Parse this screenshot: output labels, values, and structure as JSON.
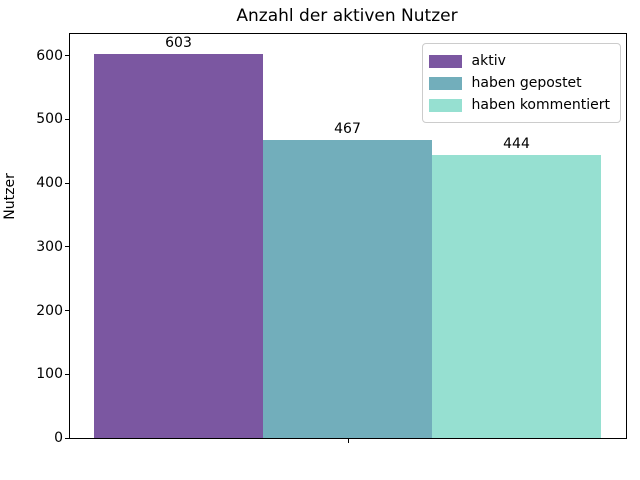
{
  "figure": {
    "title": "Anzahl der aktiven Nutzer"
  },
  "chart_data": {
    "type": "bar",
    "title": "Anzahl der aktiven Nutzer",
    "xlabel": "",
    "ylabel": "Nutzer",
    "categories": [
      ""
    ],
    "series": [
      {
        "name": "aktiv",
        "values": [
          603
        ],
        "color": "#7b57a1"
      },
      {
        "name": "haben gepostet",
        "values": [
          467
        ],
        "color": "#72aebb"
      },
      {
        "name": "haben kommentiert",
        "values": [
          444
        ],
        "color": "#96e0d1"
      }
    ],
    "bar_value_labels": [
      "603",
      "467",
      "444"
    ],
    "ylim": [
      0,
      634
    ],
    "yticks": [
      0,
      100,
      200,
      300,
      400,
      500,
      600
    ],
    "xticks_unlabeled_count": 1,
    "grid": false,
    "legend_position": "upper right",
    "text_color": "#000000",
    "spine_color": "#000000",
    "background_color": "#ffffff"
  }
}
